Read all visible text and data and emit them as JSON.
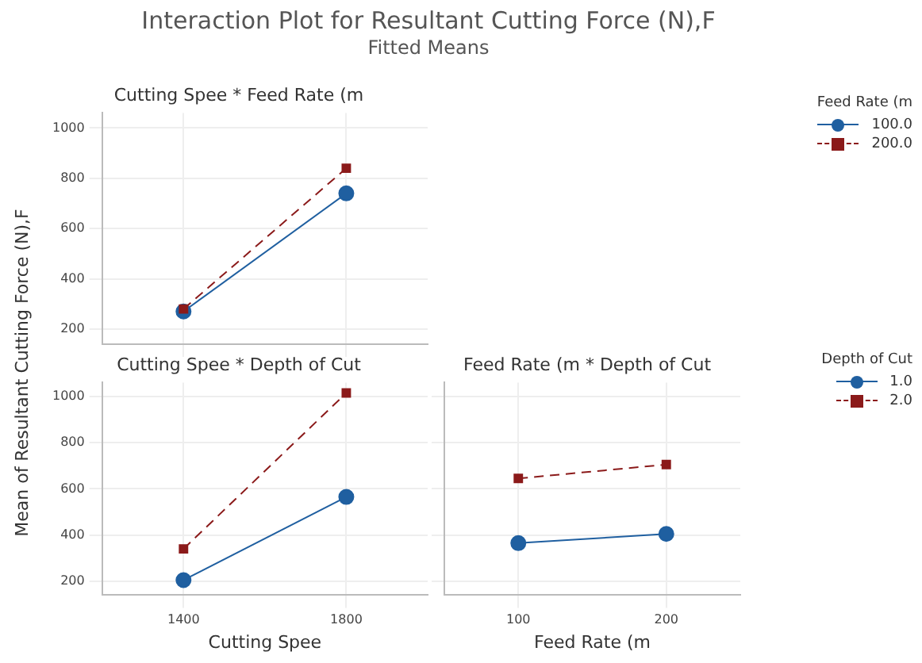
{
  "chart_data": [
    {
      "type": "line",
      "title": "Interaction Plot for Resultant Cutting Force (N),F",
      "subtitle": "Fitted Means",
      "ylabel": "Mean of Resultant Cutting Force (N),F",
      "annotations": [
        "Cutting Spee * Feed Rate (m"
      ],
      "categories": [
        "1400",
        "1800"
      ],
      "legend_title": "Feed Rate (m",
      "legend": "right",
      "grid": true,
      "tick_labels": "y",
      "ylim": [
        140,
        1060
      ],
      "yticks": [
        200,
        400,
        600,
        800,
        1000
      ],
      "series": [
        {
          "name": "100.0",
          "color": "#1f5fa0",
          "marker": "circle",
          "line_style": "solid",
          "values": [
            270,
            740
          ]
        },
        {
          "name": "200.0",
          "color": "#8b1a1a",
          "marker": "square",
          "line_style": "dashed",
          "values": [
            280,
            840
          ]
        }
      ]
    },
    {
      "type": "line",
      "title": "Cutting Spee * Depth of Cut",
      "xlabel": "Cutting Spee",
      "categories": [
        "1400",
        "1800"
      ],
      "grid": true,
      "ylim": [
        140,
        1060
      ],
      "yticks": [
        200,
        400,
        600,
        800,
        1000
      ],
      "series": [
        {
          "color": "#1f5fa0",
          "marker": "circle",
          "line_style": "solid",
          "values": [
            205,
            565
          ]
        },
        {
          "color": "#8b1a1a",
          "marker": "square",
          "line_style": "dashed",
          "values": [
            340,
            1015
          ]
        }
      ]
    },
    {
      "type": "line",
      "title": "Feed Rate (m * Depth of Cut",
      "xlabel": "Feed Rate (m",
      "categories": [
        "100",
        "200"
      ],
      "legend_title": "Depth of Cut",
      "legend": "right",
      "grid": true,
      "tick_labels": "x",
      "ylim": [
        140,
        1060
      ],
      "yticks": [
        200,
        400,
        600,
        800,
        1000
      ],
      "series": [
        {
          "name": "1.0",
          "color": "#1f5fa0",
          "marker": "circle",
          "line_style": "solid",
          "values": [
            365,
            405
          ]
        },
        {
          "name": "2.0",
          "color": "#8b1a1a",
          "marker": "square",
          "line_style": "dashed",
          "values": [
            645,
            705
          ]
        }
      ]
    }
  ]
}
